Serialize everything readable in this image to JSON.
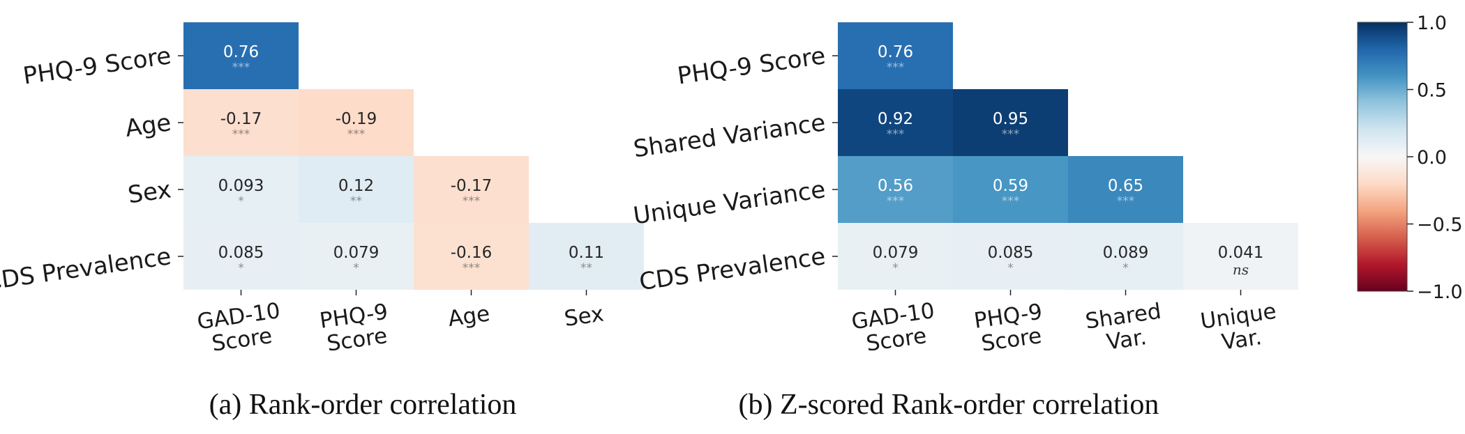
{
  "chart_data": [
    {
      "type": "heatmap",
      "id": "a",
      "caption": "(a) Rank-order correlation",
      "row_labels": [
        "PHQ-9 Score",
        "Age",
        "Sex",
        "CDS Prevalence"
      ],
      "col_labels": [
        [
          "GAD-10",
          "Score"
        ],
        [
          "PHQ-9",
          "Score"
        ],
        [
          "Age"
        ],
        [
          "Sex"
        ]
      ],
      "cells": [
        [
          {
            "v": 0.76,
            "t": "0.76",
            "s": "***"
          }
        ],
        [
          {
            "v": -0.17,
            "t": "-0.17",
            "s": "***"
          },
          {
            "v": -0.19,
            "t": "-0.19",
            "s": "***"
          }
        ],
        [
          {
            "v": 0.093,
            "t": "0.093",
            "s": "*"
          },
          {
            "v": 0.12,
            "t": "0.12",
            "s": "**"
          },
          {
            "v": -0.17,
            "t": "-0.17",
            "s": "***"
          }
        ],
        [
          {
            "v": 0.085,
            "t": "0.085",
            "s": "*"
          },
          {
            "v": 0.079,
            "t": "0.079",
            "s": "*"
          },
          {
            "v": -0.16,
            "t": "-0.16",
            "s": "***"
          },
          {
            "v": 0.11,
            "t": "0.11",
            "s": "**"
          }
        ]
      ],
      "vmin": -1.0,
      "vmax": 1.0
    },
    {
      "type": "heatmap",
      "id": "b",
      "caption": "(b) Z-scored Rank-order correlation",
      "row_labels": [
        "PHQ-9 Score",
        "Shared Variance",
        "Unique Variance",
        "CDS Prevalence"
      ],
      "col_labels": [
        [
          "GAD-10",
          "Score"
        ],
        [
          "PHQ-9",
          "Score"
        ],
        [
          "Shared",
          "Var."
        ],
        [
          "Unique",
          "Var."
        ]
      ],
      "cells": [
        [
          {
            "v": 0.76,
            "t": "0.76",
            "s": "***"
          }
        ],
        [
          {
            "v": 0.92,
            "t": "0.92",
            "s": "***"
          },
          {
            "v": 0.95,
            "t": "0.95",
            "s": "***"
          }
        ],
        [
          {
            "v": 0.56,
            "t": "0.56",
            "s": "***"
          },
          {
            "v": 0.59,
            "t": "0.59",
            "s": "***"
          },
          {
            "v": 0.65,
            "t": "0.65",
            "s": "***"
          }
        ],
        [
          {
            "v": 0.079,
            "t": "0.079",
            "s": "*"
          },
          {
            "v": 0.085,
            "t": "0.085",
            "s": "*"
          },
          {
            "v": 0.089,
            "t": "0.089",
            "s": "*"
          },
          {
            "v": 0.041,
            "t": "0.041",
            "s": "ns"
          }
        ]
      ],
      "vmin": -1.0,
      "vmax": 1.0
    }
  ],
  "colorbar": {
    "ticks": [
      1.0,
      0.5,
      0.0,
      -0.5,
      -1.0
    ],
    "tick_labels": [
      "1.0",
      "0.5",
      "0.0",
      "−0.5",
      "−1.0"
    ],
    "colormap": "RdBu",
    "stops": [
      "#67001f",
      "#b2182b",
      "#d6604d",
      "#f4a582",
      "#fddbc7",
      "#f7f7f7",
      "#d1e5f0",
      "#92c5de",
      "#4393c3",
      "#2166ac",
      "#053061"
    ]
  }
}
